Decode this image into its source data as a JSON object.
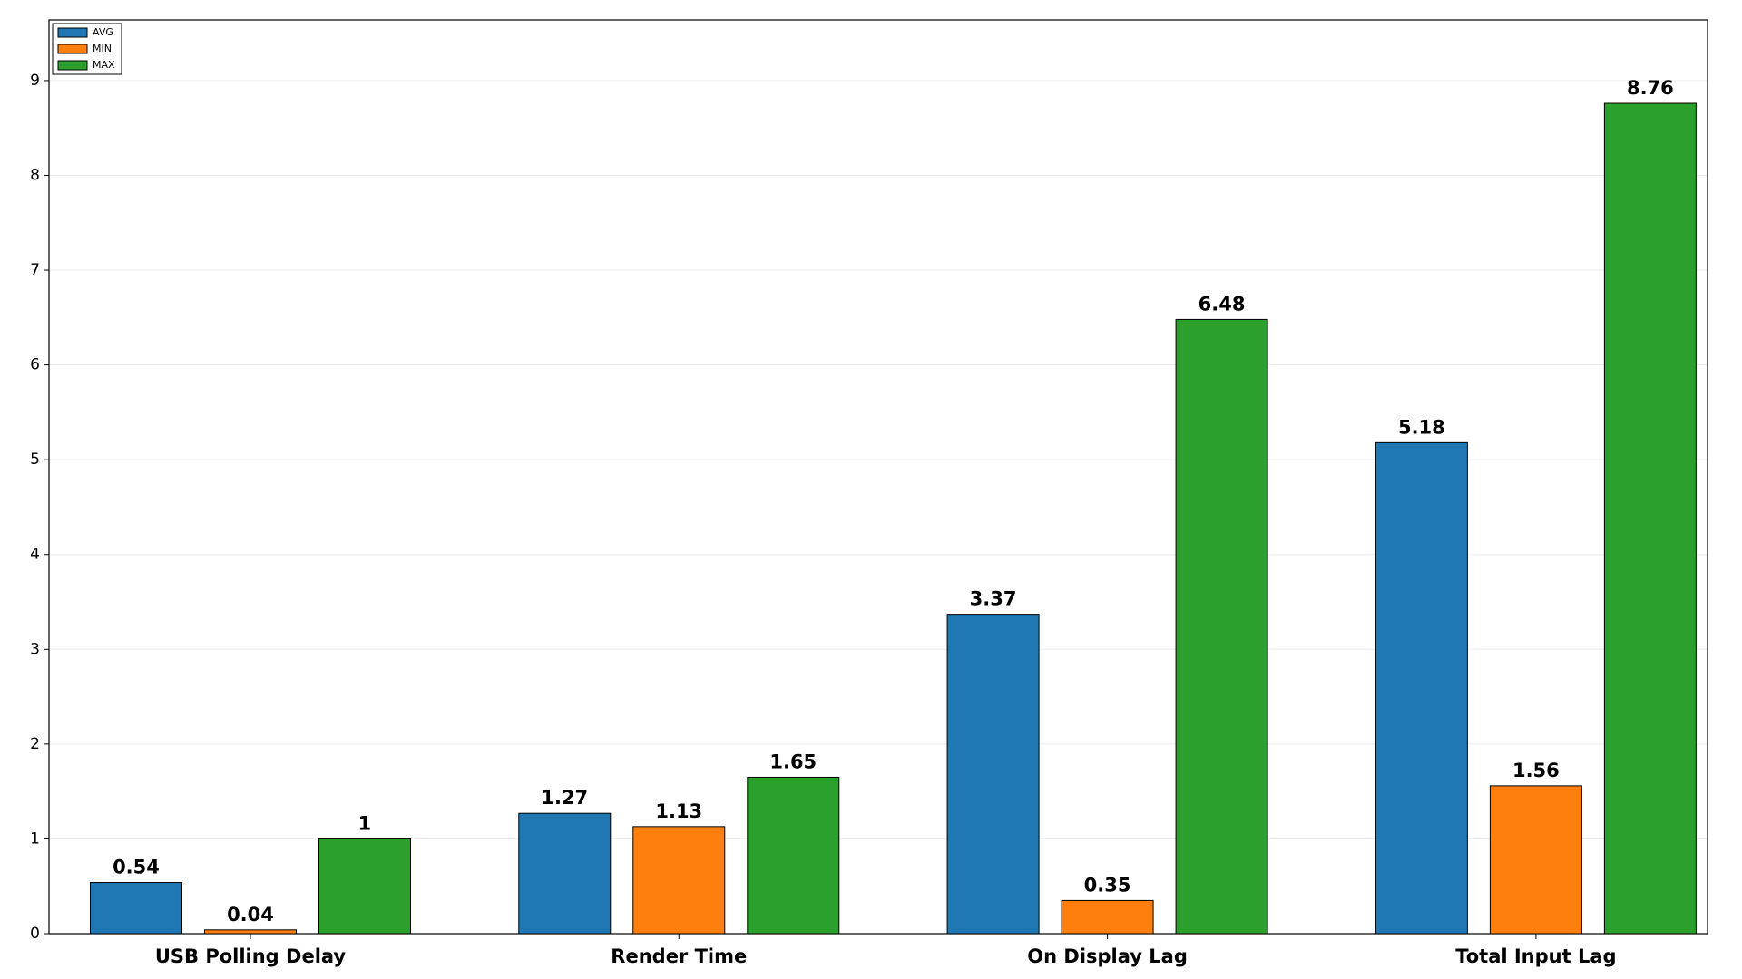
{
  "chart_data": {
    "type": "bar",
    "categories": [
      "USB Polling Delay",
      "Render Time",
      "On Display Lag",
      "Total Input Lag"
    ],
    "series": [
      {
        "name": "AVG",
        "color": "#1f77b4",
        "values": [
          0.54,
          1.27,
          3.37,
          5.18
        ]
      },
      {
        "name": "MIN",
        "color": "#ff7f0e",
        "values": [
          0.04,
          1.13,
          0.35,
          1.56
        ]
      },
      {
        "name": "MAX",
        "color": "#2ca02c",
        "values": [
          1,
          1.65,
          6.48,
          8.76
        ]
      }
    ],
    "ylim": [
      0,
      9.64
    ],
    "yticks": [
      0,
      1,
      2,
      3,
      4,
      5,
      6,
      7,
      8,
      9
    ],
    "grid": true,
    "legend": "upper-left"
  }
}
